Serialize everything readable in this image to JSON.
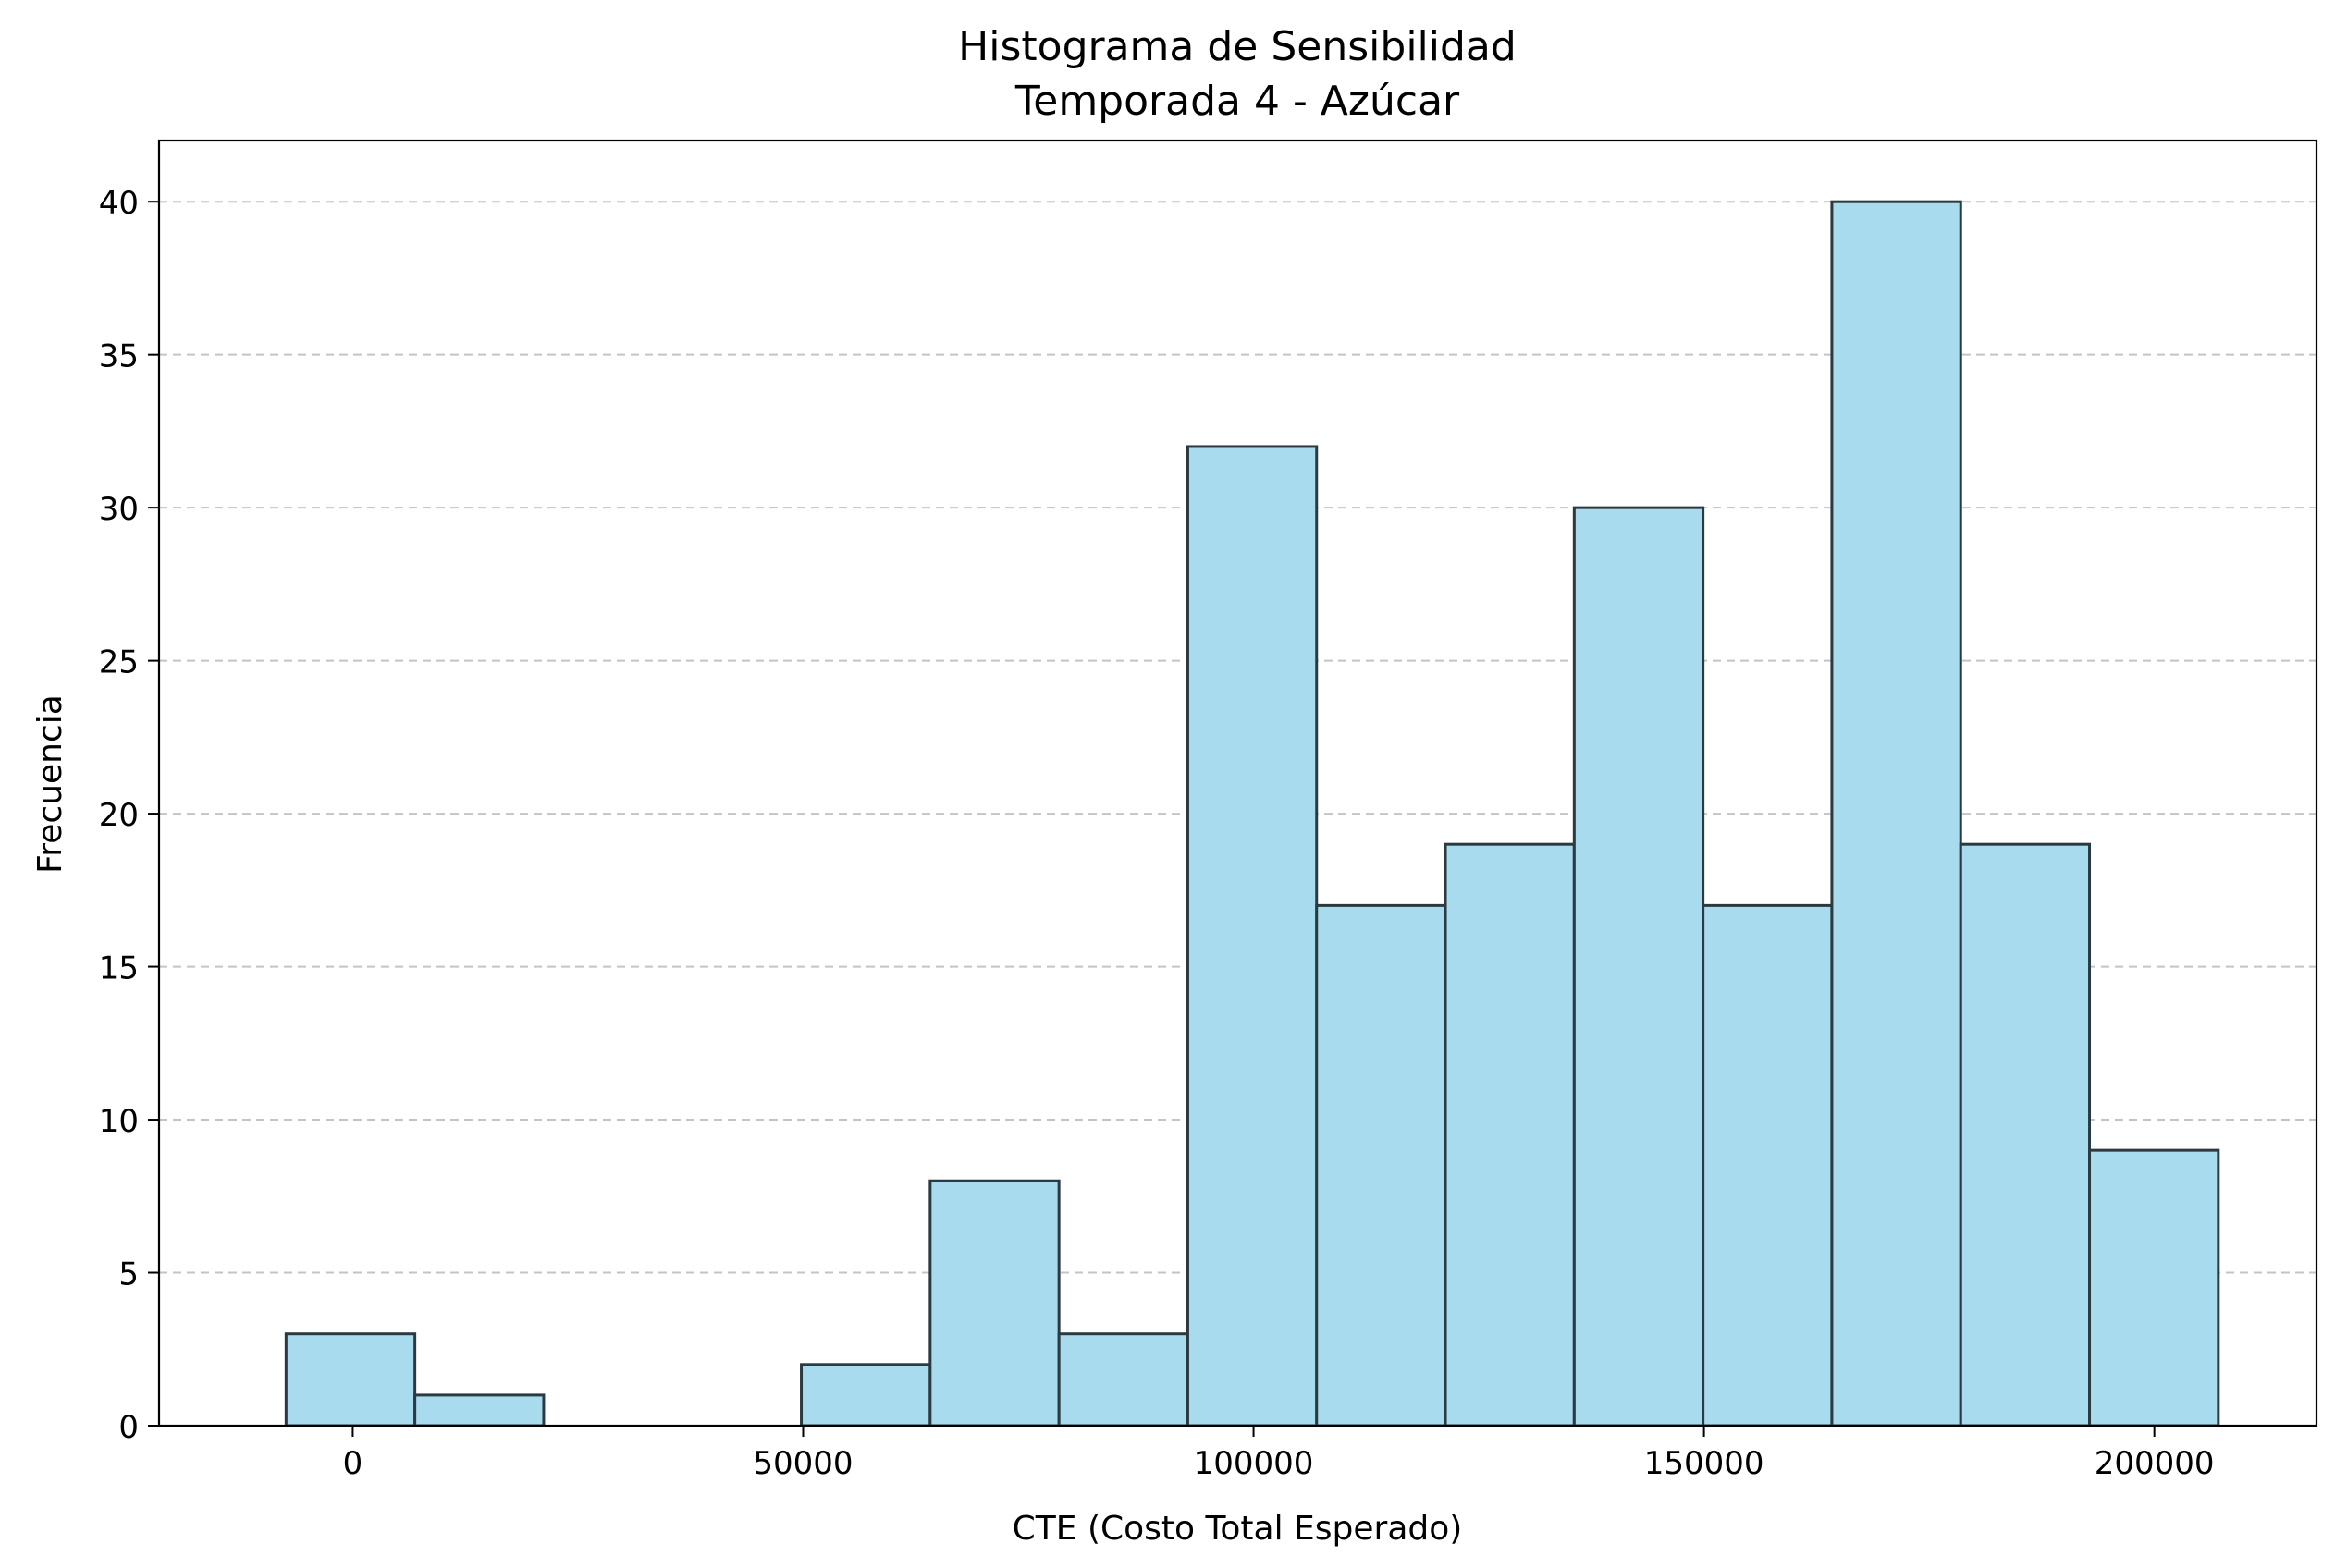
{
  "chart_data": {
    "type": "bar",
    "title": "Histograma de Sensibilidad",
    "subtitle": "Temporada 4 - Azúcar",
    "xlabel": "CTE (Costo Total Esperado)",
    "ylabel": "Frecuencia",
    "xlim": [
      -21500,
      218000
    ],
    "ylim": [
      0,
      42
    ],
    "xticks": [
      0,
      50000,
      100000,
      150000,
      200000
    ],
    "yticks": [
      0,
      5,
      10,
      15,
      20,
      25,
      30,
      35,
      40
    ],
    "grid": "y-dashed",
    "bins": [
      {
        "x0": -7400,
        "x1": 6900,
        "value": 3
      },
      {
        "x0": 6900,
        "x1": 21200,
        "value": 1
      },
      {
        "x0": 21200,
        "x1": 35500,
        "value": 0
      },
      {
        "x0": 35500,
        "x1": 49800,
        "value": 0
      },
      {
        "x0": 49800,
        "x1": 64100,
        "value": 2
      },
      {
        "x0": 64100,
        "x1": 78400,
        "value": 8
      },
      {
        "x0": 78400,
        "x1": 92700,
        "value": 3
      },
      {
        "x0": 92700,
        "x1": 107000,
        "value": 32
      },
      {
        "x0": 107000,
        "x1": 121300,
        "value": 17
      },
      {
        "x0": 121300,
        "x1": 135600,
        "value": 19
      },
      {
        "x0": 135600,
        "x1": 149900,
        "value": 30
      },
      {
        "x0": 149900,
        "x1": 164200,
        "value": 17
      },
      {
        "x0": 164200,
        "x1": 178500,
        "value": 40
      },
      {
        "x0": 178500,
        "x1": 192800,
        "value": 19
      },
      {
        "x0": 192800,
        "x1": 207100,
        "value": 9
      }
    ],
    "colors": {
      "bar_fill": "#a8dbee",
      "bar_edge": "#2a3a40",
      "grid": "#c4c4c4"
    }
  }
}
